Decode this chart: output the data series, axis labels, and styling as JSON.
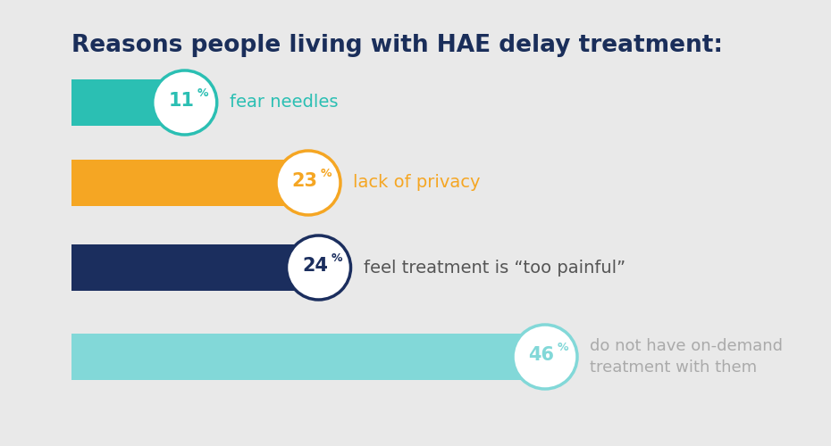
{
  "title": "Reasons people living with HAE delay treatment:",
  "background_color": "#e9e9e9",
  "title_color": "#1a2e5a",
  "title_fontsize": 19,
  "bars": [
    {
      "value": 11,
      "label": "fear needles",
      "bar_color": "#2bbfb3",
      "pct_color": "#2bbfb3",
      "label_color": "#2bbfb3",
      "label2": null
    },
    {
      "value": 23,
      "label": "lack of privacy",
      "bar_color": "#f5a623",
      "pct_color": "#f5a623",
      "label_color": "#f5a623",
      "label2": null
    },
    {
      "value": 24,
      "label": "feel treatment is “too painful”",
      "bar_color": "#1b2e5e",
      "pct_color": "#1b2e5e",
      "label_color": "#555555",
      "label2": null
    },
    {
      "value": 46,
      "label": "do not have on-demand",
      "bar_color": "#82d8d8",
      "pct_color": "#82d8d8",
      "label_color": "#aaaaaa",
      "label2": "treatment with them"
    }
  ],
  "figsize": [
    9.3,
    5.0
  ],
  "dpi": 100
}
